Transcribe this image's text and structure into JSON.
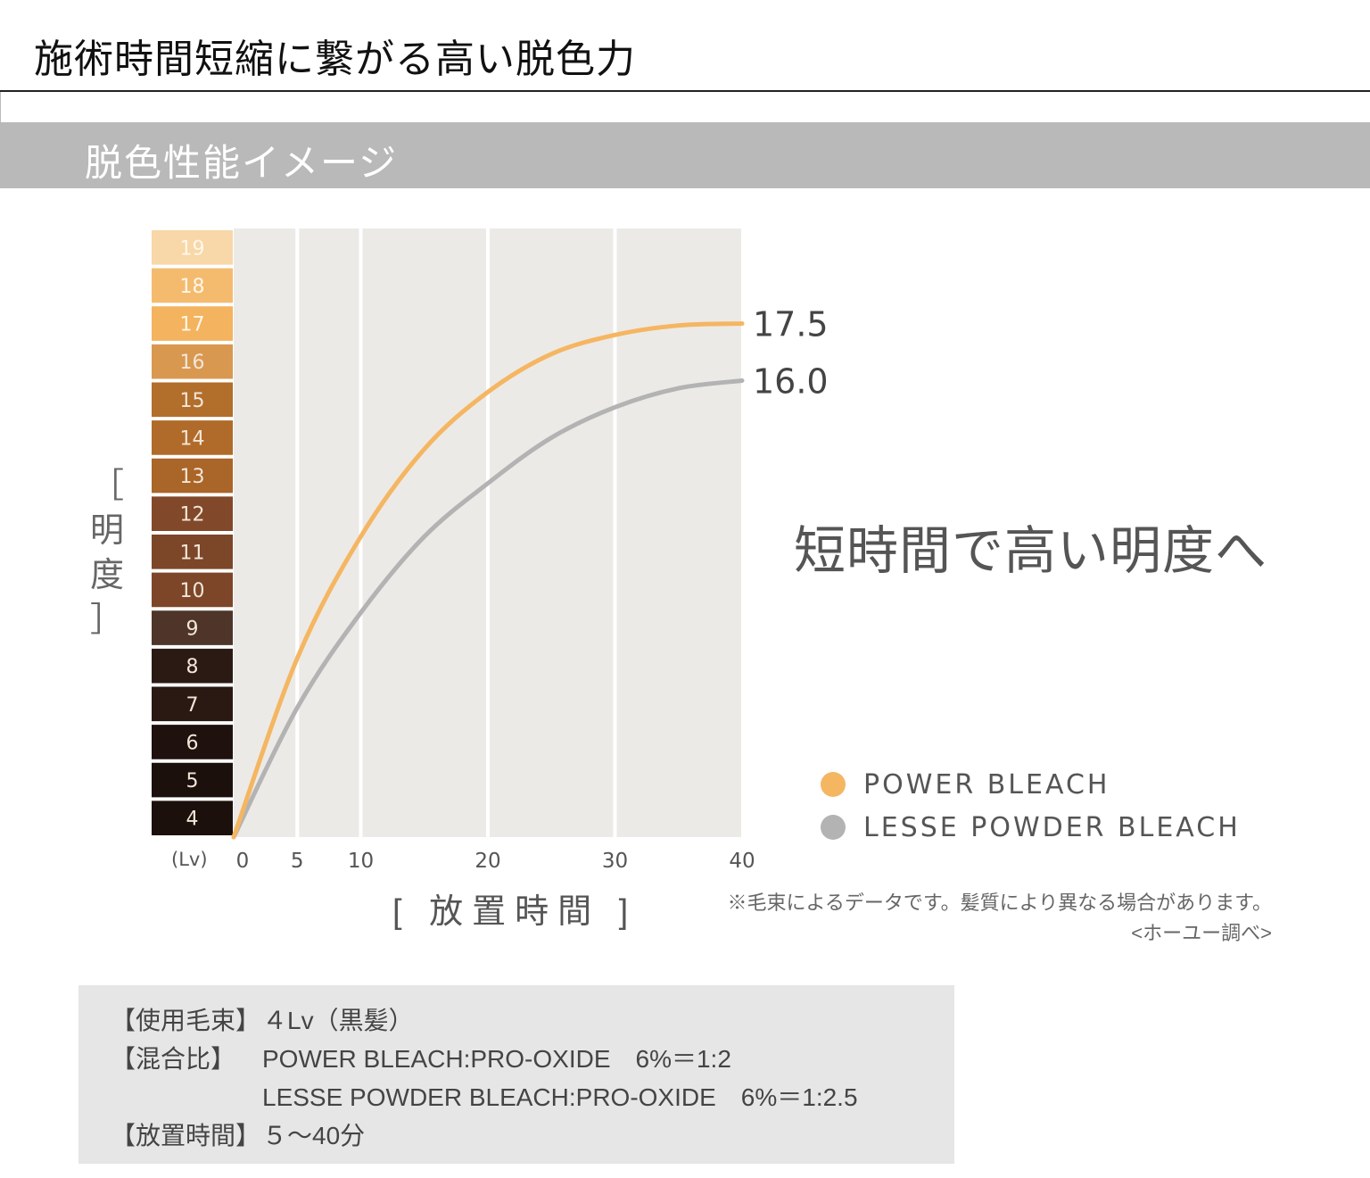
{
  "header": {
    "title": "施術時間短縮に繋がる高い脱色力",
    "section_title": "脱色性能イメージ"
  },
  "colors": {
    "power_bleach": "#f5b662",
    "lesse": "#b3b3b3",
    "plot_bg": "#eceae7",
    "scale": {
      "19": "#f8d7a8",
      "18": "#f4bb6f",
      "17": "#f4b35e",
      "16": "#d99850",
      "15": "#b26e2b",
      "14": "#b06b2a",
      "13": "#aa6528",
      "12": "#81482a",
      "11": "#7c4629",
      "10": "#7d4628",
      "9": "#4f3529",
      "8": "#2b1a14",
      "7": "#2a1812",
      "6": "#1f110d",
      "5": "#1c100c",
      "4": "#1c100c"
    }
  },
  "chart_data": {
    "type": "line",
    "title": "脱色性能イメージ",
    "xlabel": "[ 放置時間 ]",
    "ylabel": "[ 明度 ]",
    "y_unit": "(Lv)",
    "x_ticks": [
      0,
      5,
      10,
      20,
      30,
      40
    ],
    "y_scale_levels": [
      19,
      18,
      17,
      16,
      15,
      14,
      13,
      12,
      11,
      10,
      9,
      8,
      7,
      6,
      5,
      4
    ],
    "xlim": [
      0,
      40
    ],
    "ylim": [
      4,
      20
    ],
    "grid": "vertical",
    "legend_position": "bottom-right",
    "x": [
      0,
      5,
      10,
      15,
      20,
      25,
      30,
      35,
      40
    ],
    "series": [
      {
        "name": "POWER BLEACH",
        "values": [
          4,
          8.7,
          11.9,
          14.2,
          15.7,
          16.7,
          17.2,
          17.45,
          17.5
        ],
        "end_label": "17.5"
      },
      {
        "name": "LESSE POWDER BLEACH",
        "values": [
          4,
          7.4,
          9.9,
          11.9,
          13.3,
          14.5,
          15.3,
          15.8,
          16.0
        ],
        "end_label": "16.0"
      }
    ]
  },
  "headline": "短時間で高い明度へ",
  "y_axis_label_chars": [
    "［",
    "明",
    "度",
    "］"
  ],
  "legend": [
    {
      "label": "POWER BLEACH"
    },
    {
      "label": "LESSE POWDER BLEACH"
    }
  ],
  "x_axis_label": "[ 放置時間 ]",
  "note": {
    "line1": "※毛束によるデータです。髪質により異なる場合があります。",
    "line2": "<ホーユー調べ>"
  },
  "specs": [
    {
      "key": "【使用毛束】",
      "value": "４Lv（黒髪）"
    },
    {
      "key": "【混合比】",
      "value": "POWER BLEACH:PRO-OXIDE　6%＝1:2"
    },
    {
      "key": "",
      "value": "LESSE POWDER BLEACH:PRO-OXIDE　6%＝1:2.5"
    },
    {
      "key": "【放置時間】",
      "value": "５～40分"
    }
  ]
}
